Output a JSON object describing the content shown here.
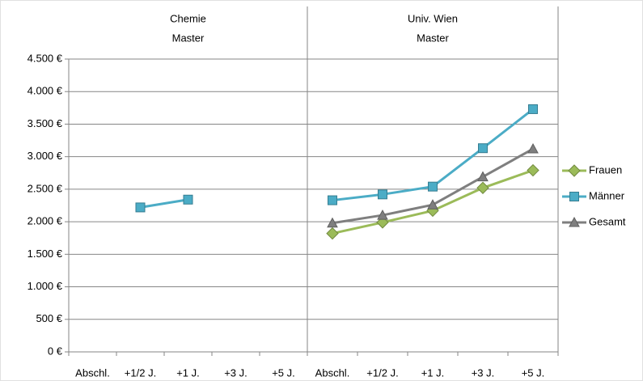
{
  "chart_data": [
    {
      "type": "line",
      "title": [
        "Chemie",
        "Master"
      ],
      "categories": [
        "Abschl.",
        "+1/2 J.",
        "+1 J.",
        "+3 J.",
        "+5 J."
      ],
      "series": [
        {
          "color": "#4bacc6",
          "marker": "square",
          "values": [
            null,
            2220,
            2340,
            null,
            null
          ]
        }
      ],
      "ylim": [
        0,
        4500
      ],
      "yticks": [
        {
          "value": 0,
          "label": "0 €"
        },
        {
          "value": 500,
          "label": "500 €"
        },
        {
          "value": 1000,
          "label": "1.000 €"
        },
        {
          "value": 1500,
          "label": "1.500 €"
        },
        {
          "value": 2000,
          "label": "2.000 €"
        },
        {
          "value": 2500,
          "label": "2.500 €"
        },
        {
          "value": 3000,
          "label": "3.000 €"
        },
        {
          "value": 3500,
          "label": "3.500 €"
        },
        {
          "value": 4000,
          "label": "4.000 €"
        },
        {
          "value": 4500,
          "label": "4.500 €"
        }
      ],
      "grid": true
    },
    {
      "type": "line",
      "title": [
        "Univ. Wien",
        "Master"
      ],
      "categories": [
        "Abschl.",
        "+1/2 J.",
        "+1 J.",
        "+3 J.",
        "+5 J."
      ],
      "series": [
        {
          "name": "Frauen",
          "color": "#9bbb59",
          "marker": "diamond",
          "values": [
            1820,
            1990,
            2170,
            2520,
            2790
          ]
        },
        {
          "name": "Männer",
          "color": "#4bacc6",
          "marker": "square",
          "values": [
            2330,
            2420,
            2540,
            3130,
            3730
          ]
        },
        {
          "name": "Gesamt",
          "color": "#7f7f7f",
          "marker": "triangle",
          "values": [
            1980,
            2100,
            2260,
            2690,
            3120
          ]
        }
      ],
      "ylim": [
        0,
        4500
      ],
      "yticks": [
        0,
        500,
        1000,
        1500,
        2000,
        2500,
        3000,
        3500,
        4000,
        4500
      ],
      "grid": true,
      "legend": "right"
    }
  ]
}
